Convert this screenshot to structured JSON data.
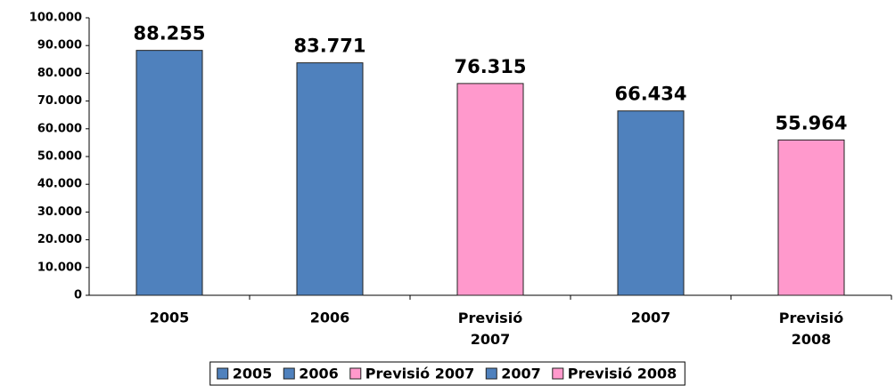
{
  "chart_data": {
    "type": "bar",
    "categories": [
      "2005",
      "2006",
      "Previsió 2007",
      "2007",
      "Previsió 2008"
    ],
    "series": [
      {
        "name": "2005",
        "color": "#4f81bd",
        "values": [
          88255,
          null,
          null,
          null,
          null
        ],
        "value_labels": [
          "88.255",
          null,
          null,
          null,
          null
        ]
      },
      {
        "name": "2006",
        "color": "#4f81bd",
        "values": [
          null,
          83771,
          null,
          null,
          null
        ],
        "value_labels": [
          null,
          "83.771",
          null,
          null,
          null
        ]
      },
      {
        "name": "Previsió 2007",
        "color": "#ff99cc",
        "values": [
          null,
          null,
          76315,
          null,
          null
        ],
        "value_labels": [
          null,
          null,
          "76.315",
          null,
          null
        ]
      },
      {
        "name": "2007",
        "color": "#4f81bd",
        "values": [
          null,
          null,
          null,
          66434,
          null
        ],
        "value_labels": [
          null,
          null,
          null,
          "66.434",
          null
        ]
      },
      {
        "name": "Previsió 2008",
        "color": "#ff99cc",
        "values": [
          null,
          null,
          null,
          null,
          55964
        ],
        "value_labels": [
          null,
          null,
          null,
          null,
          "55.964"
        ]
      }
    ],
    "ylim": [
      0,
      100000
    ],
    "yticks": [
      0,
      {
        "value": 10000,
        "label": "10.000"
      },
      {
        "value": 20000,
        "label": "20.000"
      },
      {
        "value": 30000,
        "label": "30.000"
      },
      {
        "value": 40000,
        "label": "40.000"
      },
      {
        "value": 50000,
        "label": "50.000"
      },
      {
        "value": 60000,
        "label": "60.000"
      },
      {
        "value": 70000,
        "label": "70.000"
      },
      {
        "value": 80000,
        "label": "80.000"
      },
      {
        "value": 90000,
        "label": "90.000"
      },
      {
        "value": 100000,
        "label": "100.000"
      }
    ],
    "legend": "bottom"
  }
}
